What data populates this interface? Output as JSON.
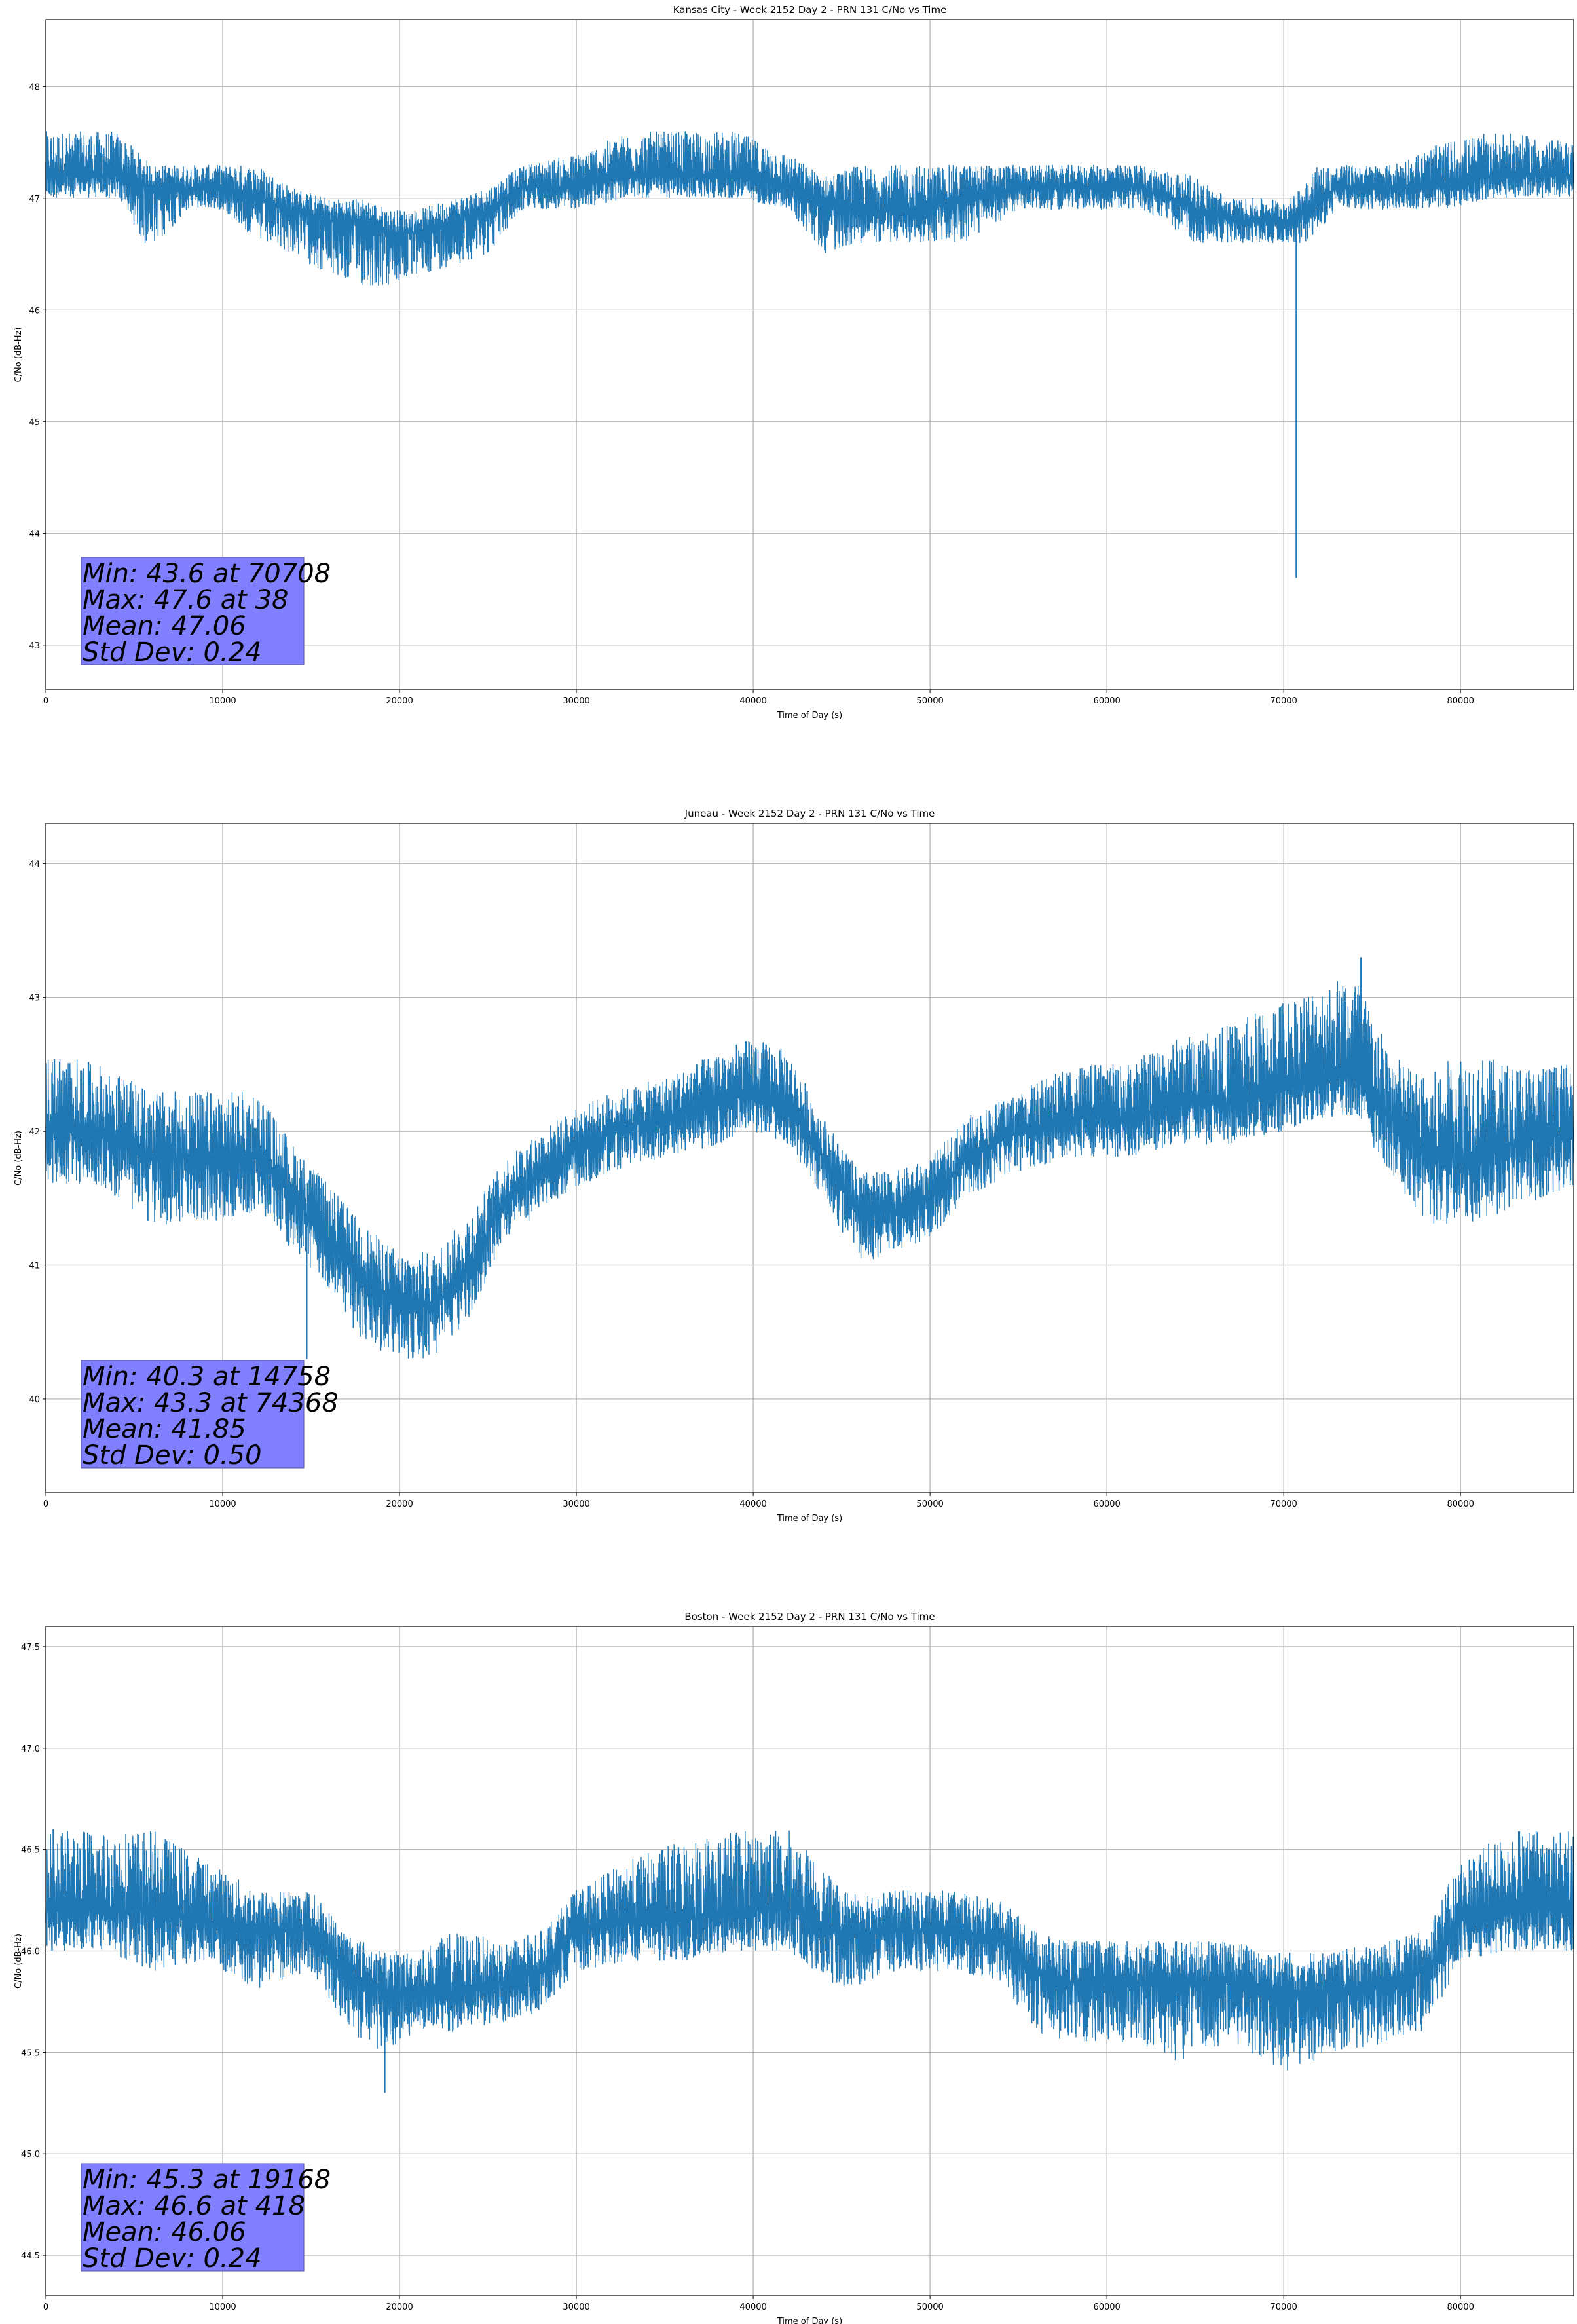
{
  "chart_data": [
    {
      "type": "line",
      "title": "Kansas City - Week 2152 Day 2 - PRN 131 C/No vs Time",
      "xlabel": "Time of Day (s)",
      "ylabel": "C/No (dB-Hz)",
      "xlim": [
        0,
        86400
      ],
      "ylim": [
        42.6,
        48.6
      ],
      "grid": true,
      "color": "#1f77b4",
      "xticks": [
        0,
        10000,
        20000,
        30000,
        40000,
        50000,
        60000,
        70000,
        80000
      ],
      "xtick_labels": [
        "0",
        "10000",
        "20000",
        "30000",
        "40000",
        "50000",
        "60000",
        "70000",
        "80000"
      ],
      "yticks": [
        43,
        44,
        45,
        46,
        47,
        48
      ],
      "ytick_labels": [
        "43",
        "44",
        "45",
        "46",
        "47",
        "48"
      ],
      "series": [
        {
          "x": [
            0,
            2000,
            4000,
            6000,
            8000,
            10000,
            12000,
            14000,
            16000,
            18000,
            19500,
            21000,
            23000,
            25000,
            27000,
            30000,
            33000,
            36000,
            39000,
            42000,
            44000,
            46000,
            48000,
            50000,
            52000,
            55000,
            58000,
            62000,
            65000,
            67000,
            69000,
            70500,
            71500,
            73000,
            76000,
            79000,
            82000,
            86400
          ],
          "y": [
            47.2,
            47.2,
            47.2,
            47.1,
            47.1,
            47.1,
            47.0,
            46.9,
            46.8,
            46.8,
            46.7,
            46.7,
            46.8,
            46.9,
            47.1,
            47.1,
            47.2,
            47.2,
            47.2,
            47.1,
            47.0,
            46.9,
            46.9,
            46.9,
            47.0,
            47.1,
            47.1,
            47.1,
            46.9,
            46.8,
            46.8,
            46.8,
            46.9,
            47.1,
            47.1,
            47.1,
            47.2,
            47.2
          ],
          "noise_low": [
            0.2,
            0.2,
            0.2,
            0.6,
            0.2,
            0.2,
            0.4,
            0.4,
            0.5,
            0.6,
            0.5,
            0.4,
            0.4,
            0.4,
            0.2,
            0.2,
            0.2,
            0.2,
            0.2,
            0.2,
            0.5,
            0.3,
            0.3,
            0.3,
            0.4,
            0.2,
            0.2,
            0.2,
            0.3,
            0.2,
            0.2,
            0.2,
            0.3,
            0.2,
            0.2,
            0.2,
            0.2,
            0.2
          ],
          "noise_high": [
            0.4,
            0.4,
            0.4,
            0.2,
            0.2,
            0.2,
            0.3,
            0.2,
            0.2,
            0.2,
            0.2,
            0.2,
            0.2,
            0.2,
            0.2,
            0.3,
            0.4,
            0.4,
            0.4,
            0.3,
            0.2,
            0.4,
            0.4,
            0.4,
            0.3,
            0.2,
            0.2,
            0.2,
            0.3,
            0.2,
            0.2,
            0.2,
            0.4,
            0.2,
            0.2,
            0.4,
            0.4,
            0.3
          ]
        }
      ],
      "min": {
        "value": 43.6,
        "x": 70708
      },
      "max": {
        "value": 47.6,
        "x": 38
      },
      "stats_lines": [
        "Min: 43.6 at 70708",
        "Max: 47.6 at 38",
        "Mean: 47.06",
        "Std Dev: 0.24"
      ]
    },
    {
      "type": "line",
      "title": "Juneau - Week 2152 Day 2 - PRN 131 C/No vs Time",
      "xlabel": "Time of Day (s)",
      "ylabel": "C/No (dB-Hz)",
      "xlim": [
        0,
        86400
      ],
      "ylim": [
        39.3,
        44.3
      ],
      "grid": true,
      "color": "#1f77b4",
      "xticks": [
        0,
        10000,
        20000,
        30000,
        40000,
        50000,
        60000,
        70000,
        80000
      ],
      "xtick_labels": [
        "0",
        "10000",
        "20000",
        "30000",
        "40000",
        "50000",
        "60000",
        "70000",
        "80000"
      ],
      "yticks": [
        40,
        41,
        42,
        43,
        44
      ],
      "ytick_labels": [
        "40",
        "41",
        "42",
        "43",
        "44"
      ],
      "series": [
        {
          "x": [
            0,
            3000,
            6000,
            9000,
            12000,
            14000,
            16000,
            18000,
            20000,
            22000,
            24000,
            26000,
            29000,
            32000,
            35000,
            38000,
            40000,
            42000,
            44000,
            46000,
            48000,
            50000,
            52000,
            55000,
            58000,
            61000,
            64000,
            67000,
            70000,
            72000,
            74000,
            76000,
            78000,
            80000,
            83000,
            86400
          ],
          "y": [
            42.0,
            42.0,
            41.8,
            41.8,
            41.8,
            41.5,
            41.2,
            40.9,
            40.7,
            40.7,
            41.0,
            41.5,
            41.8,
            42.0,
            42.1,
            42.2,
            42.3,
            42.2,
            41.8,
            41.4,
            41.4,
            41.5,
            41.8,
            42.0,
            42.1,
            42.1,
            42.2,
            42.2,
            42.3,
            42.4,
            42.4,
            42.1,
            41.8,
            41.8,
            41.9,
            42.0
          ],
          "noise_low": [
            0.4,
            0.4,
            0.5,
            0.5,
            0.4,
            0.4,
            0.4,
            0.5,
            0.4,
            0.4,
            0.4,
            0.3,
            0.3,
            0.3,
            0.3,
            0.3,
            0.3,
            0.3,
            0.3,
            0.4,
            0.3,
            0.3,
            0.3,
            0.3,
            0.3,
            0.3,
            0.3,
            0.3,
            0.3,
            0.3,
            0.3,
            0.4,
            0.5,
            0.5,
            0.5,
            0.4
          ],
          "noise_high": [
            0.6,
            0.5,
            0.5,
            0.5,
            0.5,
            0.4,
            0.4,
            0.4,
            0.4,
            0.4,
            0.4,
            0.3,
            0.3,
            0.3,
            0.3,
            0.4,
            0.4,
            0.4,
            0.3,
            0.3,
            0.3,
            0.3,
            0.3,
            0.3,
            0.4,
            0.4,
            0.5,
            0.6,
            0.7,
            0.7,
            0.8,
            0.5,
            0.6,
            0.8,
            0.6,
            0.5
          ]
        }
      ],
      "min": {
        "value": 40.3,
        "x": 14758
      },
      "max": {
        "value": 43.3,
        "x": 74368
      },
      "stats_lines": [
        "Min: 40.3 at 14758",
        "Max: 43.3 at 74368",
        "Mean: 41.85",
        "Std Dev: 0.50"
      ]
    },
    {
      "type": "line",
      "title": "Boston - Week 2152 Day 2 - PRN 131 C/No vs Time",
      "xlabel": "Time of Day (s)",
      "ylabel": "C/No (dB-Hz)",
      "xlim": [
        0,
        86400
      ],
      "ylim": [
        44.3,
        47.6
      ],
      "grid": true,
      "color": "#1f77b4",
      "xticks": [
        0,
        10000,
        20000,
        30000,
        40000,
        50000,
        60000,
        70000,
        80000
      ],
      "xtick_labels": [
        "0",
        "10000",
        "20000",
        "30000",
        "40000",
        "50000",
        "60000",
        "70000",
        "80000"
      ],
      "yticks": [
        44.5,
        45.0,
        45.5,
        46.0,
        46.5,
        47.0,
        47.5
      ],
      "ytick_labels": [
        "44.5",
        "45.0",
        "45.5",
        "46.0",
        "46.5",
        "47.0",
        "47.5"
      ],
      "series": [
        {
          "x": [
            0,
            3000,
            6000,
            9000,
            12000,
            15000,
            17000,
            19000,
            21000,
            23000,
            26000,
            28000,
            30000,
            33000,
            36000,
            39000,
            42000,
            45000,
            48000,
            51000,
            54000,
            56000,
            58000,
            61000,
            64000,
            67000,
            70000,
            73000,
            76000,
            78000,
            80000,
            83000,
            86400
          ],
          "y": [
            46.2,
            46.2,
            46.2,
            46.15,
            46.1,
            46.1,
            45.9,
            45.8,
            45.8,
            45.8,
            45.85,
            45.9,
            46.1,
            46.15,
            46.15,
            46.2,
            46.2,
            46.1,
            46.1,
            46.1,
            46.05,
            45.9,
            45.85,
            45.85,
            45.85,
            45.85,
            45.8,
            45.8,
            45.85,
            45.9,
            46.15,
            46.2,
            46.2
          ],
          "noise_low": [
            0.2,
            0.2,
            0.3,
            0.2,
            0.3,
            0.2,
            0.3,
            0.3,
            0.2,
            0.2,
            0.2,
            0.2,
            0.2,
            0.2,
            0.2,
            0.2,
            0.2,
            0.3,
            0.2,
            0.2,
            0.2,
            0.3,
            0.3,
            0.3,
            0.4,
            0.3,
            0.4,
            0.3,
            0.3,
            0.3,
            0.2,
            0.2,
            0.2
          ],
          "noise_high": [
            0.4,
            0.4,
            0.4,
            0.3,
            0.2,
            0.2,
            0.2,
            0.2,
            0.2,
            0.3,
            0.2,
            0.2,
            0.2,
            0.3,
            0.4,
            0.4,
            0.4,
            0.2,
            0.2,
            0.2,
            0.2,
            0.2,
            0.2,
            0.2,
            0.2,
            0.2,
            0.2,
            0.2,
            0.2,
            0.2,
            0.3,
            0.4,
            0.4
          ]
        }
      ],
      "min": {
        "value": 45.3,
        "x": 19168
      },
      "max": {
        "value": 46.6,
        "x": 418
      },
      "stats_lines": [
        "Min: 45.3 at 19168",
        "Max: 46.6 at 418",
        "Mean: 46.06",
        "Std Dev: 0.24"
      ]
    }
  ]
}
